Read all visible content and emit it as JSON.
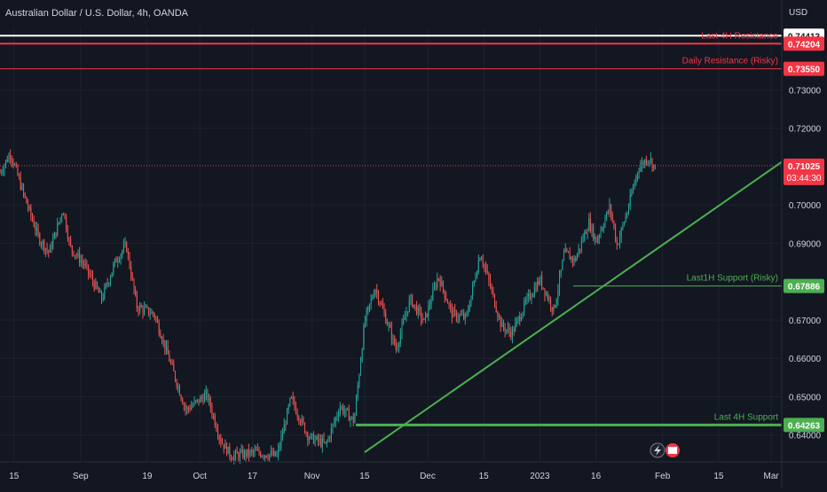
{
  "header": {
    "title": "Australian Dollar / U.S. Dollar, 4h, OANDA",
    "currency": "USD"
  },
  "colors": {
    "background": "#131722",
    "up": "#26a69a",
    "down": "#ef5350",
    "support": "#4caf50",
    "resistance": "#f23645",
    "text": "#d1d4dc"
  },
  "chart_data": {
    "type": "candlestick",
    "title": "Australian Dollar / U.S. Dollar, 4h, OANDA",
    "currency": "USD",
    "ylim": [
      0.633,
      0.7465
    ],
    "xlim": [
      0,
      22.3
    ],
    "y_ticks": [
      "0.73000",
      "0.72000",
      "0.70000",
      "0.69000",
      "0.67000",
      "0.66000",
      "0.65000",
      "0.64000"
    ],
    "x_ticks": [
      {
        "label": "15",
        "x": 0.4
      },
      {
        "label": "Sep",
        "x": 2.3
      },
      {
        "label": "19",
        "x": 4.2
      },
      {
        "label": "Oct",
        "x": 5.7
      },
      {
        "label": "17",
        "x": 7.2
      },
      {
        "label": "Nov",
        "x": 8.9
      },
      {
        "label": "15",
        "x": 10.4
      },
      {
        "label": "Dec",
        "x": 12.2
      },
      {
        "label": "15",
        "x": 13.8
      },
      {
        "label": "2023",
        "x": 15.4
      },
      {
        "label": "16",
        "x": 17.0
      },
      {
        "label": "Feb",
        "x": 18.9
      },
      {
        "label": "15",
        "x": 20.5
      },
      {
        "label": "Mar",
        "x": 22.0
      }
    ],
    "key_points": [
      {
        "x": 0.0,
        "p": 0.7085
      },
      {
        "x": 0.3,
        "p": 0.7135
      },
      {
        "x": 0.7,
        "p": 0.702
      },
      {
        "x": 1.1,
        "p": 0.6915
      },
      {
        "x": 1.4,
        "p": 0.6875
      },
      {
        "x": 1.8,
        "p": 0.699
      },
      {
        "x": 2.0,
        "p": 0.689
      },
      {
        "x": 2.4,
        "p": 0.6845
      },
      {
        "x": 2.9,
        "p": 0.6755
      },
      {
        "x": 3.3,
        "p": 0.6855
      },
      {
        "x": 3.6,
        "p": 0.6895
      },
      {
        "x": 3.9,
        "p": 0.6735
      },
      {
        "x": 4.4,
        "p": 0.6715
      },
      {
        "x": 4.8,
        "p": 0.6605
      },
      {
        "x": 5.3,
        "p": 0.6465
      },
      {
        "x": 5.9,
        "p": 0.6505
      },
      {
        "x": 6.3,
        "p": 0.6385
      },
      {
        "x": 6.6,
        "p": 0.6345
      },
      {
        "x": 7.3,
        "p": 0.6355
      },
      {
        "x": 7.9,
        "p": 0.6345
      },
      {
        "x": 8.3,
        "p": 0.6495
      },
      {
        "x": 8.8,
        "p": 0.6395
      },
      {
        "x": 9.3,
        "p": 0.6375
      },
      {
        "x": 9.7,
        "p": 0.6475
      },
      {
        "x": 10.1,
        "p": 0.6435
      },
      {
        "x": 10.4,
        "p": 0.6695
      },
      {
        "x": 10.7,
        "p": 0.6785
      },
      {
        "x": 11.0,
        "p": 0.6705
      },
      {
        "x": 11.3,
        "p": 0.6625
      },
      {
        "x": 11.7,
        "p": 0.6755
      },
      {
        "x": 12.1,
        "p": 0.6695
      },
      {
        "x": 12.5,
        "p": 0.6815
      },
      {
        "x": 12.9,
        "p": 0.6715
      },
      {
        "x": 13.3,
        "p": 0.6705
      },
      {
        "x": 13.7,
        "p": 0.6875
      },
      {
        "x": 13.9,
        "p": 0.6815
      },
      {
        "x": 14.3,
        "p": 0.6685
      },
      {
        "x": 14.6,
        "p": 0.6665
      },
      {
        "x": 15.0,
        "p": 0.6745
      },
      {
        "x": 15.4,
        "p": 0.6805
      },
      {
        "x": 15.8,
        "p": 0.6725
      },
      {
        "x": 16.1,
        "p": 0.6875
      },
      {
        "x": 16.4,
        "p": 0.6855
      },
      {
        "x": 16.8,
        "p": 0.6955
      },
      {
        "x": 17.0,
        "p": 0.6905
      },
      {
        "x": 17.4,
        "p": 0.6995
      },
      {
        "x": 17.6,
        "p": 0.6895
      },
      {
        "x": 17.9,
        "p": 0.6985
      },
      {
        "x": 18.2,
        "p": 0.7095
      },
      {
        "x": 18.5,
        "p": 0.7125
      },
      {
        "x": 18.7,
        "p": 0.7095
      }
    ],
    "horizontal_levels": [
      {
        "price": 0.74413,
        "label": "0.74413",
        "note": "",
        "color": "#ffffff",
        "text_color": "#131722",
        "x_start": 0,
        "width": 2
      },
      {
        "price": 0.74204,
        "label": "0.74204",
        "note": "Last 4H Resistance",
        "color": "#f23645",
        "text_color": "#ffffff",
        "x_start": 0,
        "width": 2
      },
      {
        "price": 0.7355,
        "label": "0.73550",
        "note": "Daily Resistance (Risky)",
        "color": "#f23645",
        "text_color": "#ffffff",
        "x_start": 0,
        "width": 1
      },
      {
        "price": 0.67886,
        "label": "0.67886",
        "note": "Last1H Support (Risky)",
        "color": "#4caf50",
        "text_color": "#ffffff",
        "x_start": 16.35,
        "width": 1
      },
      {
        "price": 0.64263,
        "label": "0.64263",
        "note": "Last 4H Support",
        "color": "#4caf50",
        "text_color": "#ffffff",
        "x_start": 10.15,
        "width": 3
      }
    ],
    "current_price": {
      "price": 0.71025,
      "label": "0.71025",
      "countdown": "03:44:30",
      "color": "#f23645"
    },
    "trendline": {
      "x1": 10.4,
      "p1": 0.6355,
      "x2": 22.3,
      "p2": 0.7112,
      "color": "#4caf50"
    }
  }
}
